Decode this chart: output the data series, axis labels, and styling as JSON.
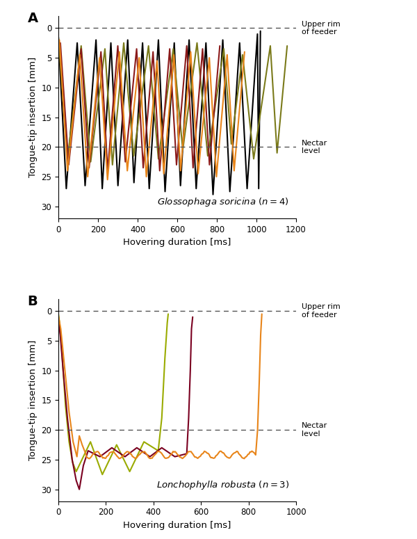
{
  "panel_A": {
    "title_italic": "Glossophaga soricina",
    "title_normal": "(n = 4)",
    "xlabel": "Hovering duration [ms]",
    "ylabel": "Tongue-tip insertion [mm]",
    "xlim": [
      0,
      1200
    ],
    "ylim": [
      32,
      -2
    ],
    "xticks": [
      0,
      200,
      400,
      600,
      800,
      1000,
      1200
    ],
    "yticks": [
      0,
      5,
      10,
      15,
      20,
      25,
      30
    ],
    "hline_upper": 0,
    "hline_nectar": 20,
    "upper_rim_label": "Upper rim\nof feeder",
    "nectar_label": "Nectar\nlevel",
    "label": "A"
  },
  "panel_B": {
    "title_italic": "Lonchophylla robusta",
    "title_normal": "(n = 3)",
    "xlabel": "Hovering duration [ms]",
    "ylabel": "Tongue-tip insertion [mm]",
    "xlim": [
      0,
      1000
    ],
    "ylim": [
      32,
      -2
    ],
    "xticks": [
      0,
      200,
      400,
      600,
      800,
      1000
    ],
    "yticks": [
      0,
      5,
      10,
      15,
      20,
      25,
      30
    ],
    "hline_upper": 0,
    "hline_nectar": 20,
    "upper_rim_label": "Upper rim\nof feeder",
    "nectar_label": "Nectar\nlevel",
    "label": "B"
  }
}
